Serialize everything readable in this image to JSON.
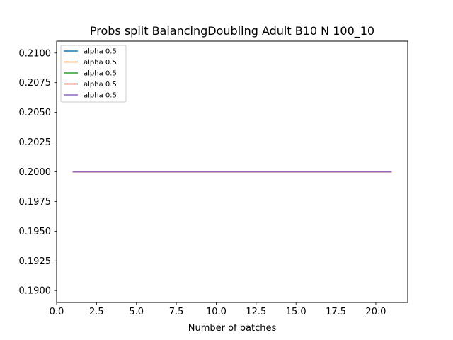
{
  "chart_data": {
    "type": "line",
    "title": "Probs split BalancingDoubling Adult B10 N 100_10",
    "xlabel": "Number of batches",
    "ylabel": "",
    "xlim": [
      0.0,
      22.0
    ],
    "ylim": [
      0.189,
      0.211
    ],
    "xticks": [
      0.0,
      2.5,
      5.0,
      7.5,
      10.0,
      12.5,
      15.0,
      17.5,
      20.0
    ],
    "xtick_labels": [
      "0.0",
      "2.5",
      "5.0",
      "7.5",
      "10.0",
      "12.5",
      "15.0",
      "17.5",
      "20.0"
    ],
    "yticks": [
      0.19,
      0.1925,
      0.195,
      0.1975,
      0.2,
      0.2025,
      0.205,
      0.2075,
      0.21
    ],
    "ytick_labels": [
      "0.1900",
      "0.1925",
      "0.1950",
      "0.1975",
      "0.2000",
      "0.2025",
      "0.2050",
      "0.2075",
      "0.2100"
    ],
    "grid": false,
    "legend_position": "top-left",
    "x": [
      1,
      21
    ],
    "series": [
      {
        "name": "alpha 0.5",
        "color": "#1f77b4",
        "values": [
          0.2,
          0.2
        ]
      },
      {
        "name": "alpha 0.5",
        "color": "#ff7f0e",
        "values": [
          0.2,
          0.2
        ]
      },
      {
        "name": "alpha 0.5",
        "color": "#2ca02c",
        "values": [
          0.2,
          0.2
        ]
      },
      {
        "name": "alpha 0.5",
        "color": "#d62728",
        "values": [
          0.2,
          0.2
        ]
      },
      {
        "name": "alpha 0.5",
        "color": "#9467bd",
        "values": [
          0.2,
          0.2
        ]
      }
    ]
  }
}
